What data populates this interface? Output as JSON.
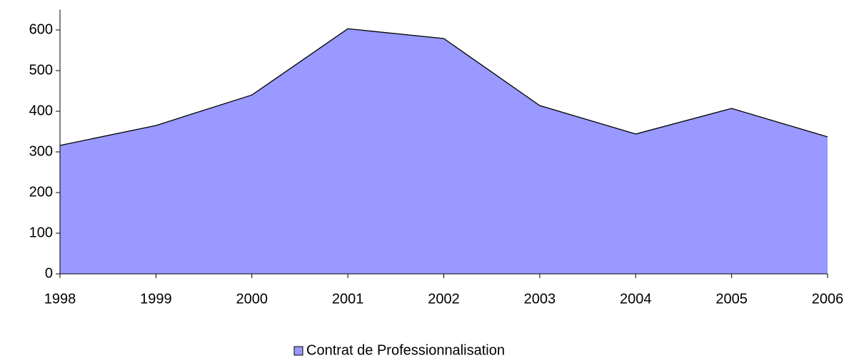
{
  "chart_data": {
    "type": "area",
    "categories": [
      "1998",
      "1999",
      "2000",
      "2001",
      "2002",
      "2003",
      "2004",
      "2005",
      "2006"
    ],
    "series": [
      {
        "name": "Contrat de Professionnalisation",
        "color": "#9999ff",
        "values": [
          316,
          365,
          440,
          603,
          579,
          414,
          344,
          407,
          337
        ]
      }
    ],
    "ylim": [
      0,
      650
    ],
    "yticks": [
      0,
      100,
      200,
      300,
      400,
      500,
      600
    ],
    "legend": "bottom"
  }
}
